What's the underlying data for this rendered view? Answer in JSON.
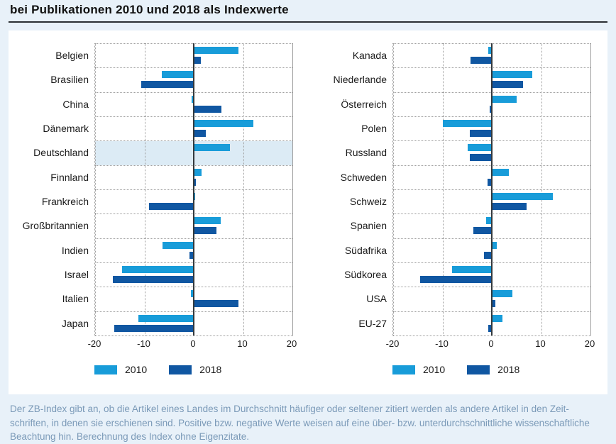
{
  "title": "bei Publikationen 2010 und 2018 als Indexwerte",
  "colors": {
    "page_background": "#e8f1f9",
    "panel_background": "#ffffff",
    "bar_2010": "#189cd9",
    "bar_2018": "#1057a2",
    "highlight_band": "#dcebf5",
    "zero_axis": "#33393d",
    "grid": "#9e9e9e",
    "footer_text": "#7b9ab8"
  },
  "chart_data": [
    {
      "type": "bar",
      "orientation": "horizontal",
      "xlim": [
        -20,
        20
      ],
      "xticks": [
        -20,
        -10,
        0,
        10,
        20
      ],
      "grid": "dotted",
      "legend_position": "bottom",
      "highlight_category": "Deutschland",
      "categories": [
        "Belgien",
        "Brasilien",
        "China",
        "Dänemark",
        "Deutschland",
        "Finnland",
        "Frankreich",
        "Großbritannien",
        "Indien",
        "Israel",
        "Italien",
        "Japan"
      ],
      "series": [
        {
          "name": "2010",
          "color": "#189cd9",
          "values": [
            9.0,
            -6.5,
            -0.5,
            12.1,
            7.3,
            1.6,
            0.3,
            5.5,
            -6.3,
            -14.6,
            -0.6,
            -11.2
          ]
        },
        {
          "name": "2018",
          "color": "#1057a2",
          "values": [
            1.5,
            -10.6,
            5.6,
            2.4,
            0.2,
            0.4,
            -9.0,
            4.6,
            -0.8,
            -16.4,
            9.1,
            -16.1
          ]
        }
      ]
    },
    {
      "type": "bar",
      "orientation": "horizontal",
      "xlim": [
        -20,
        20
      ],
      "xticks": [
        -20,
        -10,
        0,
        10,
        20
      ],
      "grid": "dotted",
      "legend_position": "bottom",
      "highlight_category": null,
      "categories": [
        "Kanada",
        "Niederlande",
        "Österreich",
        "Polen",
        "Russland",
        "Schweden",
        "Schweiz",
        "Spanien",
        "Südafrika",
        "Südkorea",
        "USA",
        "EU-27"
      ],
      "series": [
        {
          "name": "2010",
          "color": "#189cd9",
          "values": [
            -0.7,
            8.2,
            5.0,
            -9.9,
            -4.9,
            3.5,
            12.4,
            -1.1,
            1.0,
            -8.0,
            4.2,
            2.2
          ]
        },
        {
          "name": "2018",
          "color": "#1057a2",
          "values": [
            -4.3,
            6.3,
            -0.4,
            -4.4,
            -4.5,
            -0.8,
            7.0,
            -3.7,
            -1.6,
            -14.6,
            0.7,
            -0.7
          ]
        }
      ]
    }
  ],
  "footer": {
    "lines": [
      "Der ZB-Index gibt an, ob die Artikel eines Landes im Durchschnitt häufiger oder seltener zitiert werden als andere Artikel in den Zeit-",
      "schriften, in denen sie erschienen sind. Positive bzw. negative Werte weisen auf eine über- bzw. unterdurchschnittliche wissenschaftliche",
      "Beachtung hin. Berechnung des Index ohne Eigenzitate."
    ]
  }
}
